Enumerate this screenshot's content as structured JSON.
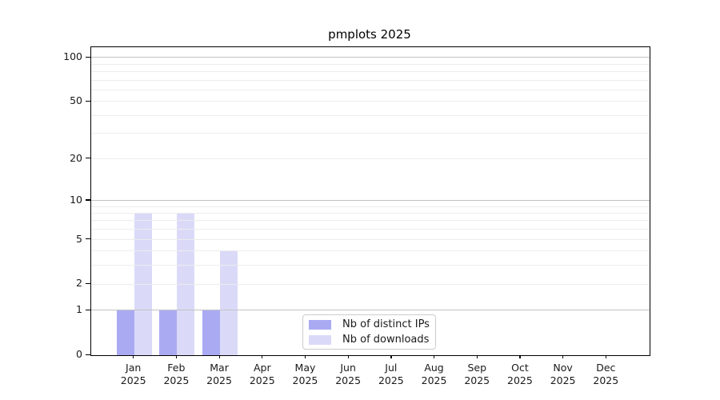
{
  "title": "pmplots 2025",
  "colors": {
    "distinct_ips": "#aaaaf3",
    "downloads": "#dadaf8",
    "grid_major": "#c3c3c3",
    "grid_minor": "#ececec",
    "axis": "#000000",
    "legend_border": "#cccccc",
    "text": "#1a1a1a"
  },
  "legend": {
    "items": [
      {
        "label": "Nb of distinct IPs",
        "color": "#aaaaf3"
      },
      {
        "label": "Nb of downloads",
        "color": "#dadaf8"
      }
    ]
  },
  "chart_data": {
    "type": "bar",
    "title": "pmplots 2025",
    "categories": [
      "Jan 2025",
      "Feb 2025",
      "Mar 2025",
      "Apr 2025",
      "May 2025",
      "Jun 2025",
      "Jul 2025",
      "Aug 2025",
      "Sep 2025",
      "Oct 2025",
      "Nov 2025",
      "Dec 2025"
    ],
    "x_tick_months": [
      "Jan",
      "Feb",
      "Mar",
      "Apr",
      "May",
      "Jun",
      "Jul",
      "Aug",
      "Sep",
      "Oct",
      "Nov",
      "Dec"
    ],
    "x_tick_year": "2025",
    "series": [
      {
        "name": "Nb of distinct IPs",
        "color": "#aaaaf3",
        "values": [
          1,
          1,
          1,
          0,
          0,
          0,
          0,
          0,
          0,
          0,
          0,
          0
        ]
      },
      {
        "name": "Nb of downloads",
        "color": "#dadaf8",
        "values": [
          8,
          8,
          4,
          0,
          0,
          0,
          0,
          0,
          0,
          0,
          0,
          0
        ]
      }
    ],
    "xlabel": "",
    "ylabel": "",
    "y_scale": "log1p",
    "ylim": [
      0,
      118
    ],
    "y_tick_values": [
      0,
      1,
      2,
      5,
      10,
      20,
      50,
      100
    ],
    "y_tick_labels": [
      "0",
      "1",
      "2",
      "5",
      "10",
      "20",
      "50",
      "100"
    ],
    "y_major_gridlines": [
      1,
      10,
      100
    ],
    "y_minor_gridlines": [
      2,
      3,
      4,
      5,
      6,
      7,
      8,
      9,
      20,
      30,
      40,
      50,
      60,
      70,
      80,
      90
    ],
    "grid": true,
    "legend_position": "lower center"
  }
}
